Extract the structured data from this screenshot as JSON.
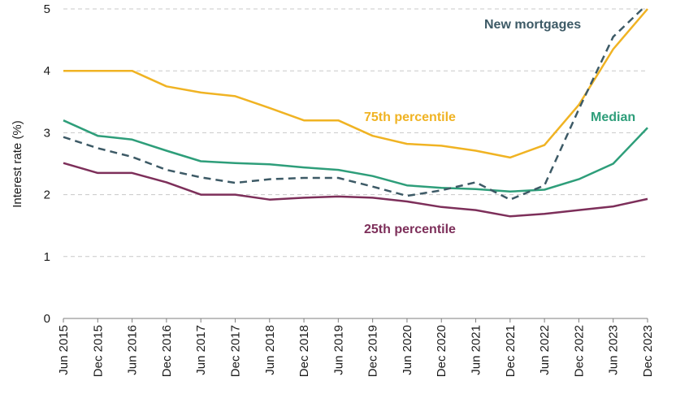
{
  "chart_data": {
    "type": "line",
    "title": "",
    "xlabel": "",
    "ylabel": "Interest rate (%)",
    "ylim": [
      0,
      5
    ],
    "yticks": [
      "0",
      "1",
      "2",
      "3",
      "4",
      "5"
    ],
    "grid": "horizontal dashed",
    "categories": [
      "Jun 2015",
      "Dec 2015",
      "Jun 2016",
      "Dec 2016",
      "Jun 2017",
      "Dec 2017",
      "Jun 2018",
      "Dec 2018",
      "Jun 2019",
      "Dec 2019",
      "Jun 2020",
      "Dec 2020",
      "Jun 2021",
      "Dec 2021",
      "Jun 2022",
      "Dec 2022",
      "Jun 2023",
      "Dec 2023"
    ],
    "series": [
      {
        "name": "75th percentile",
        "color": "#f0b323",
        "dash": false,
        "values": [
          4.0,
          4.0,
          4.0,
          3.75,
          3.65,
          3.59,
          3.4,
          3.2,
          3.2,
          2.95,
          2.82,
          2.79,
          2.71,
          2.6,
          2.8,
          3.45,
          4.35,
          5.0
        ]
      },
      {
        "name": "Median",
        "color": "#2e9e7a",
        "dash": false,
        "values": [
          3.2,
          2.95,
          2.89,
          2.71,
          2.54,
          2.51,
          2.49,
          2.44,
          2.4,
          2.3,
          2.15,
          2.11,
          2.09,
          2.05,
          2.08,
          2.25,
          2.5,
          3.08
        ]
      },
      {
        "name": "New mortgages",
        "color": "#3d5a66",
        "dash": true,
        "values": [
          2.93,
          2.75,
          2.61,
          2.4,
          2.28,
          2.19,
          2.25,
          2.27,
          2.27,
          2.13,
          1.98,
          2.07,
          2.2,
          1.92,
          2.15,
          3.38,
          4.55,
          5.08
        ]
      },
      {
        "name": "25th percentile",
        "color": "#7d2f5a",
        "dash": false,
        "values": [
          2.51,
          2.35,
          2.35,
          2.2,
          2.0,
          2.0,
          1.92,
          1.95,
          1.97,
          1.95,
          1.89,
          1.8,
          1.75,
          1.65,
          1.69,
          1.75,
          1.81,
          1.93
        ]
      }
    ],
    "annotations": [
      {
        "text": "New mortgages",
        "series": "New mortgages",
        "color": "#3d5a66"
      },
      {
        "text": "75th percentile",
        "series": "75th percentile",
        "color": "#f0b323"
      },
      {
        "text": "Median",
        "series": "Median",
        "color": "#2e9e7a"
      },
      {
        "text": "25th percentile",
        "series": "25th percentile",
        "color": "#7d2f5a"
      }
    ]
  }
}
